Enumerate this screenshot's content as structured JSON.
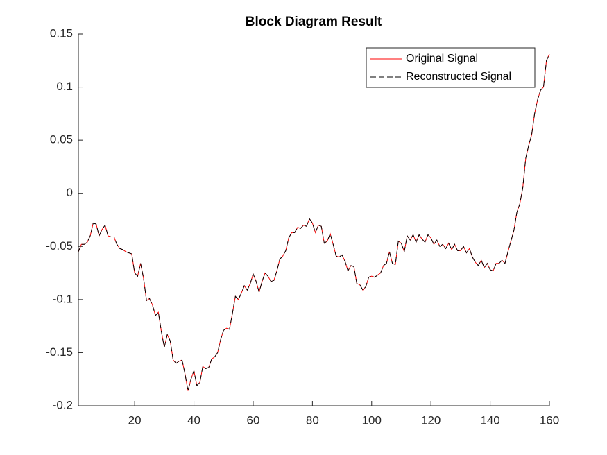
{
  "chart_data": {
    "type": "line",
    "title": "Block Diagram Result",
    "x": [
      1,
      2,
      3,
      4,
      5,
      6,
      7,
      8,
      9,
      10,
      11,
      12,
      13,
      14,
      15,
      16,
      17,
      18,
      19,
      20,
      21,
      22,
      23,
      24,
      25,
      26,
      27,
      28,
      29,
      30,
      31,
      32,
      33,
      34,
      35,
      36,
      37,
      38,
      39,
      40,
      41,
      42,
      43,
      44,
      45,
      46,
      47,
      48,
      49,
      50,
      51,
      52,
      53,
      54,
      55,
      56,
      57,
      58,
      59,
      60,
      61,
      62,
      63,
      64,
      65,
      66,
      67,
      68,
      69,
      70,
      71,
      72,
      73,
      74,
      75,
      76,
      77,
      78,
      79,
      80,
      81,
      82,
      83,
      84,
      85,
      86,
      87,
      88,
      89,
      90,
      91,
      92,
      93,
      94,
      95,
      96,
      97,
      98,
      99,
      100,
      101,
      102,
      103,
      104,
      105,
      106,
      107,
      108,
      109,
      110,
      111,
      112,
      113,
      114,
      115,
      116,
      117,
      118,
      119,
      120,
      121,
      122,
      123,
      124,
      125,
      126,
      127,
      128,
      129,
      130,
      131,
      132,
      133,
      134,
      135,
      136,
      137,
      138,
      139,
      140,
      141,
      142,
      143,
      144,
      145,
      146,
      147,
      148,
      149,
      150,
      151,
      152,
      153,
      154,
      155,
      156,
      157,
      158,
      159,
      160
    ],
    "series": [
      {
        "name": "Original Signal",
        "color": "#ff0000",
        "dash": false,
        "values": [
          -0.055,
          -0.048,
          -0.048,
          -0.046,
          -0.04,
          -0.028,
          -0.029,
          -0.04,
          -0.034,
          -0.03,
          -0.04,
          -0.041,
          -0.041,
          -0.048,
          -0.052,
          -0.053,
          -0.055,
          -0.056,
          -0.057,
          -0.075,
          -0.078,
          -0.066,
          -0.08,
          -0.101,
          -0.099,
          -0.105,
          -0.115,
          -0.112,
          -0.13,
          -0.145,
          -0.133,
          -0.139,
          -0.157,
          -0.16,
          -0.158,
          -0.157,
          -0.17,
          -0.186,
          -0.175,
          -0.167,
          -0.181,
          -0.178,
          -0.163,
          -0.165,
          -0.164,
          -0.156,
          -0.154,
          -0.15,
          -0.138,
          -0.129,
          -0.127,
          -0.128,
          -0.113,
          -0.097,
          -0.1,
          -0.094,
          -0.087,
          -0.091,
          -0.085,
          -0.076,
          -0.083,
          -0.093,
          -0.083,
          -0.075,
          -0.078,
          -0.083,
          -0.082,
          -0.073,
          -0.062,
          -0.059,
          -0.054,
          -0.042,
          -0.037,
          -0.037,
          -0.032,
          -0.033,
          -0.03,
          -0.031,
          -0.024,
          -0.028,
          -0.037,
          -0.03,
          -0.031,
          -0.047,
          -0.045,
          -0.038,
          -0.048,
          -0.059,
          -0.06,
          -0.058,
          -0.064,
          -0.073,
          -0.068,
          -0.069,
          -0.085,
          -0.086,
          -0.091,
          -0.088,
          -0.079,
          -0.078,
          -0.079,
          -0.077,
          -0.075,
          -0.068,
          -0.066,
          -0.055,
          -0.066,
          -0.067,
          -0.045,
          -0.047,
          -0.055,
          -0.04,
          -0.044,
          -0.039,
          -0.046,
          -0.039,
          -0.043,
          -0.046,
          -0.039,
          -0.042,
          -0.048,
          -0.044,
          -0.05,
          -0.048,
          -0.052,
          -0.047,
          -0.053,
          -0.048,
          -0.054,
          -0.054,
          -0.05,
          -0.056,
          -0.052,
          -0.06,
          -0.065,
          -0.068,
          -0.063,
          -0.07,
          -0.066,
          -0.072,
          -0.073,
          -0.066,
          -0.066,
          -0.063,
          -0.066,
          -0.055,
          -0.045,
          -0.035,
          -0.018,
          -0.01,
          0.005,
          0.033,
          0.045,
          0.055,
          0.075,
          0.088,
          0.097,
          0.1,
          0.125,
          0.131
        ]
      },
      {
        "name": "Reconstructed Signal",
        "color": "#000000",
        "dash": true,
        "values": [
          -0.055,
          -0.048,
          -0.048,
          -0.046,
          -0.04,
          -0.028,
          -0.029,
          -0.04,
          -0.034,
          -0.03,
          -0.04,
          -0.041,
          -0.041,
          -0.048,
          -0.052,
          -0.053,
          -0.055,
          -0.056,
          -0.057,
          -0.075,
          -0.078,
          -0.066,
          -0.08,
          -0.101,
          -0.099,
          -0.105,
          -0.115,
          -0.112,
          -0.13,
          -0.145,
          -0.133,
          -0.139,
          -0.157,
          -0.16,
          -0.158,
          -0.157,
          -0.17,
          -0.186,
          -0.175,
          -0.167,
          -0.181,
          -0.178,
          -0.163,
          -0.165,
          -0.164,
          -0.156,
          -0.154,
          -0.15,
          -0.138,
          -0.129,
          -0.127,
          -0.128,
          -0.113,
          -0.097,
          -0.1,
          -0.094,
          -0.087,
          -0.091,
          -0.085,
          -0.076,
          -0.083,
          -0.093,
          -0.083,
          -0.075,
          -0.078,
          -0.083,
          -0.082,
          -0.073,
          -0.062,
          -0.059,
          -0.054,
          -0.042,
          -0.037,
          -0.037,
          -0.032,
          -0.033,
          -0.03,
          -0.031,
          -0.024,
          -0.028,
          -0.037,
          -0.03,
          -0.031,
          -0.047,
          -0.045,
          -0.038,
          -0.048,
          -0.059,
          -0.06,
          -0.058,
          -0.064,
          -0.073,
          -0.068,
          -0.069,
          -0.085,
          -0.086,
          -0.091,
          -0.088,
          -0.079,
          -0.078,
          -0.079,
          -0.077,
          -0.075,
          -0.068,
          -0.066,
          -0.055,
          -0.066,
          -0.067,
          -0.045,
          -0.047,
          -0.055,
          -0.04,
          -0.044,
          -0.039,
          -0.046,
          -0.039,
          -0.043,
          -0.046,
          -0.039,
          -0.042,
          -0.048,
          -0.044,
          -0.05,
          -0.048,
          -0.052,
          -0.047,
          -0.053,
          -0.048,
          -0.054,
          -0.054,
          -0.05,
          -0.056,
          -0.052,
          -0.06,
          -0.065,
          -0.068,
          -0.063,
          -0.07,
          -0.066,
          -0.072,
          -0.073,
          -0.066,
          -0.066,
          -0.063,
          -0.066,
          -0.055,
          -0.045,
          -0.035,
          -0.018,
          -0.01,
          0.005,
          0.033,
          0.045,
          0.055,
          0.075,
          0.088,
          0.097,
          0.1,
          0.125,
          0.131
        ]
      }
    ],
    "xlim": [
      1,
      160
    ],
    "xticks": [
      20,
      40,
      60,
      80,
      100,
      120,
      140,
      160
    ],
    "ylim": [
      -0.2,
      0.15
    ],
    "yticks": [
      -0.2,
      -0.15,
      -0.1,
      -0.05,
      0,
      0.05,
      0.1,
      0.15
    ],
    "legend": "northeast"
  }
}
